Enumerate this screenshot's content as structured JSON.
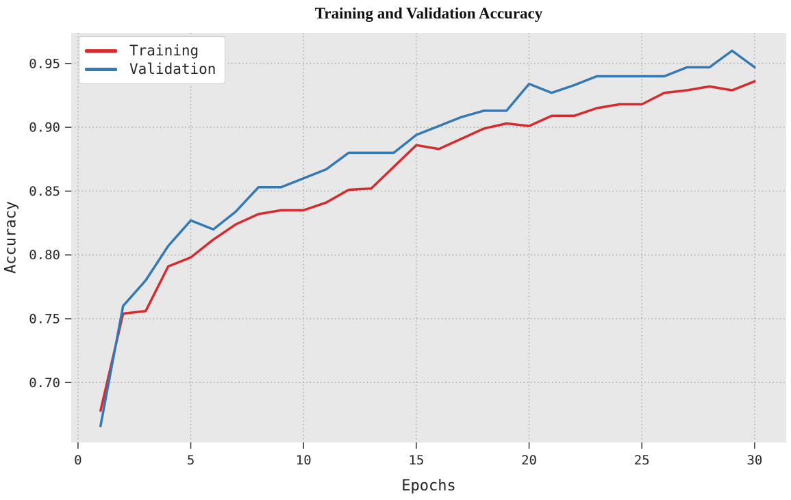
{
  "chart_data": {
    "type": "line",
    "title": "Training and Validation Accuracy",
    "xlabel": "Epochs",
    "ylabel": "Accuracy",
    "x": [
      1,
      2,
      3,
      4,
      5,
      6,
      7,
      8,
      9,
      10,
      11,
      12,
      13,
      14,
      15,
      16,
      17,
      18,
      19,
      20,
      21,
      22,
      23,
      24,
      25,
      26,
      27,
      28,
      29,
      30
    ],
    "series": [
      {
        "name": "Training",
        "color": "#d62b2e",
        "values": [
          0.678,
          0.754,
          0.756,
          0.791,
          0.798,
          0.812,
          0.824,
          0.832,
          0.835,
          0.835,
          0.841,
          0.851,
          0.852,
          0.869,
          0.886,
          0.883,
          0.891,
          0.899,
          0.903,
          0.901,
          0.909,
          0.909,
          0.915,
          0.918,
          0.918,
          0.927,
          0.929,
          0.932,
          0.929,
          0.936
        ]
      },
      {
        "name": "Validation",
        "color": "#3579b3",
        "values": [
          0.666,
          0.76,
          0.78,
          0.807,
          0.827,
          0.82,
          0.834,
          0.853,
          0.853,
          0.86,
          0.867,
          0.88,
          0.88,
          0.88,
          0.894,
          0.901,
          0.908,
          0.913,
          0.913,
          0.934,
          0.927,
          0.933,
          0.94,
          0.94,
          0.94,
          0.94,
          0.947,
          0.947,
          0.96,
          0.947
        ]
      }
    ],
    "xlim": [
      -0.3,
      31.4
    ],
    "ylim": [
      0.653,
      0.974
    ],
    "xticks": [
      0,
      5,
      10,
      15,
      20,
      25,
      30
    ],
    "xtick_labels": [
      "0",
      "5",
      "10",
      "15",
      "20",
      "25",
      "30"
    ],
    "yticks": [
      0.7,
      0.75,
      0.8,
      0.85,
      0.9,
      0.95
    ],
    "ytick_labels": [
      "0.70",
      "0.75",
      "0.80",
      "0.85",
      "0.90",
      "0.95"
    ],
    "grid": true,
    "grid_style": "dotted",
    "legend_position": "upper-left",
    "line_width": 3.5,
    "colors": {
      "figure_bg": "#ffffff",
      "plot_bg": "#e8e8e8",
      "grid": "#ababab",
      "tick": "#333333",
      "tick_label": "#262626"
    }
  }
}
